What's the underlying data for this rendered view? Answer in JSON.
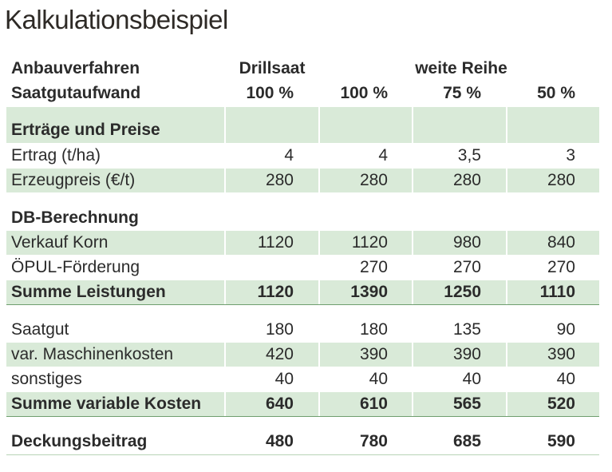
{
  "title": "Kalkulationsbeispiel",
  "header": {
    "row1": {
      "label": "Anbauverfahren",
      "drillsaat": "Drillsaat",
      "weite_reihe": "weite Reihe"
    },
    "row2": {
      "label": "Saatgutaufwand",
      "values": [
        "100 %",
        "100 %",
        "75 %",
        "50 %"
      ]
    }
  },
  "sections": {
    "ertraege": "Erträge und Preise",
    "db": "DB-Berechnung"
  },
  "rows": {
    "ertrag": {
      "label": "Ertrag (t/ha)",
      "values": [
        "4",
        "4",
        "3,5",
        "3"
      ]
    },
    "erzeugpreis": {
      "label": "Erzeugpreis (€/t)",
      "values": [
        "280",
        "280",
        "280",
        "280"
      ]
    },
    "verkauf": {
      "label": "Verkauf Korn",
      "values": [
        "1120",
        "1120",
        "980",
        "840"
      ]
    },
    "oepul": {
      "label": "ÖPUL-Förderung",
      "values": [
        "",
        "270",
        "270",
        "270"
      ]
    },
    "summe_leistungen": {
      "label": "Summe Leistungen",
      "values": [
        "1120",
        "1390",
        "1250",
        "1110"
      ]
    },
    "saatgut": {
      "label": "Saatgut",
      "values": [
        "180",
        "180",
        "135",
        "90"
      ]
    },
    "maschinen": {
      "label": "var. Maschinenkosten",
      "values": [
        "420",
        "390",
        "390",
        "390"
      ]
    },
    "sonstiges": {
      "label": "sonstiges",
      "values": [
        "40",
        "40",
        "40",
        "40"
      ]
    },
    "summe_variable": {
      "label": "Summe variable Kosten",
      "values": [
        "640",
        "610",
        "565",
        "520"
      ]
    },
    "deckungsbeitrag": {
      "label": "Deckungsbeitrag",
      "values": [
        "480",
        "780",
        "685",
        "590"
      ]
    }
  },
  "colors": {
    "row_green": "#d9ead8",
    "rule": "#6f9e6f",
    "text": "#2b2b2b"
  }
}
